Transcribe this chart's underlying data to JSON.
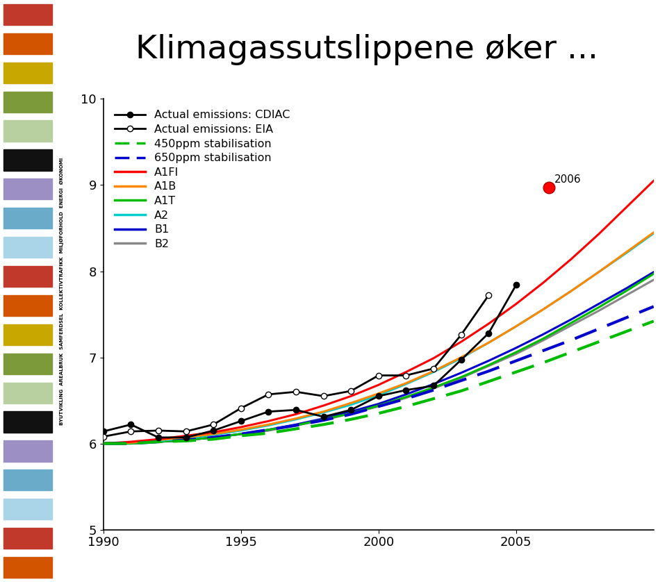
{
  "title": "Klimagassutslippene øker ...",
  "title_fontsize": 34,
  "xlim": [
    1990,
    2010
  ],
  "ylim": [
    5,
    10
  ],
  "yticks": [
    5,
    6,
    7,
    8,
    9,
    10
  ],
  "xticks": [
    1990,
    1995,
    2000,
    2005
  ],
  "bg_color": "#ffffff",
  "sidebar_colors": [
    "#c0392b",
    "#d35400",
    "#c8a800",
    "#7d9a3a",
    "#b8cfa0",
    "#000000",
    "#9b8fc4",
    "#6aabca",
    "#87ceeb",
    "#c0392b",
    "#d35400",
    "#c8a800",
    "#7d9a3a",
    "#b8cfa0",
    "#000000",
    "#9b8fc4",
    "#6aabca",
    "#87ceeb",
    "#c0392b",
    "#d35400"
  ],
  "cdiac_x": [
    1990,
    1991,
    1992,
    1993,
    1994,
    1995,
    1996,
    1997,
    1998,
    1999,
    2000,
    2001,
    2002,
    2003,
    2004,
    2005
  ],
  "cdiac_y": [
    6.14,
    6.22,
    6.07,
    6.07,
    6.15,
    6.26,
    6.37,
    6.39,
    6.31,
    6.39,
    6.55,
    6.62,
    6.67,
    6.97,
    7.28,
    7.84
  ],
  "eia_x": [
    1990,
    1991,
    1992,
    1993,
    1994,
    1995,
    1996,
    1997,
    1998,
    1999,
    2000,
    2001,
    2002,
    2003,
    2004
  ],
  "eia_y": [
    6.08,
    6.14,
    6.15,
    6.14,
    6.22,
    6.41,
    6.57,
    6.6,
    6.55,
    6.61,
    6.79,
    6.79,
    6.87,
    7.26,
    7.72
  ],
  "scenario_x": [
    1990,
    1991,
    1992,
    1993,
    1994,
    1995,
    1996,
    1997,
    1998,
    1999,
    2000,
    2001,
    2002,
    2003,
    2004,
    2005,
    2006,
    2007,
    2008,
    2009,
    2010
  ],
  "A1FI_y": [
    6.0,
    6.02,
    6.05,
    6.09,
    6.13,
    6.19,
    6.26,
    6.34,
    6.44,
    6.55,
    6.68,
    6.83,
    6.99,
    7.18,
    7.39,
    7.62,
    7.87,
    8.14,
    8.43,
    8.74,
    9.05
  ],
  "A1B_y": [
    6.0,
    6.01,
    6.04,
    6.07,
    6.11,
    6.16,
    6.22,
    6.29,
    6.37,
    6.47,
    6.58,
    6.7,
    6.84,
    7.0,
    7.17,
    7.36,
    7.56,
    7.77,
    7.99,
    8.22,
    8.45
  ],
  "A1T_y": [
    6.0,
    6.0,
    6.02,
    6.04,
    6.07,
    6.11,
    6.16,
    6.21,
    6.28,
    6.35,
    6.44,
    6.54,
    6.65,
    6.77,
    6.91,
    7.06,
    7.22,
    7.4,
    7.58,
    7.77,
    7.97
  ],
  "A2_y": [
    6.0,
    6.01,
    6.03,
    6.06,
    6.1,
    6.15,
    6.21,
    6.28,
    6.36,
    6.45,
    6.56,
    6.69,
    6.83,
    6.99,
    7.17,
    7.36,
    7.56,
    7.77,
    7.99,
    8.21,
    8.44
  ],
  "B1_y": [
    6.0,
    6.0,
    6.02,
    6.04,
    6.07,
    6.11,
    6.16,
    6.22,
    6.29,
    6.37,
    6.46,
    6.57,
    6.69,
    6.82,
    6.96,
    7.11,
    7.27,
    7.44,
    7.62,
    7.8,
    7.99
  ],
  "B2_y": [
    6.0,
    6.0,
    6.02,
    6.04,
    6.07,
    6.11,
    6.15,
    6.21,
    6.27,
    6.35,
    6.43,
    6.53,
    6.64,
    6.76,
    6.9,
    7.04,
    7.2,
    7.37,
    7.54,
    7.72,
    7.9
  ],
  "stab450_x": [
    1990,
    1991,
    1992,
    1993,
    1994,
    1995,
    1996,
    1997,
    1998,
    1999,
    2000,
    2001,
    2002,
    2003,
    2004,
    2005,
    2006,
    2007,
    2008,
    2009,
    2010
  ],
  "stab450_y": [
    6.0,
    6.0,
    6.02,
    6.03,
    6.05,
    6.09,
    6.12,
    6.17,
    6.22,
    6.28,
    6.35,
    6.43,
    6.52,
    6.61,
    6.72,
    6.83,
    6.94,
    7.06,
    7.18,
    7.3,
    7.42
  ],
  "stab650_x": [
    1990,
    1991,
    1992,
    1993,
    1994,
    1995,
    1996,
    1997,
    1998,
    1999,
    2000,
    2001,
    2002,
    2003,
    2004,
    2005,
    2006,
    2007,
    2008,
    2009,
    2010
  ],
  "stab650_y": [
    6.0,
    6.0,
    6.02,
    6.04,
    6.07,
    6.11,
    6.16,
    6.21,
    6.27,
    6.34,
    6.43,
    6.52,
    6.62,
    6.73,
    6.84,
    6.96,
    7.08,
    7.2,
    7.33,
    7.46,
    7.59
  ],
  "point2006_x": 2006.2,
  "point2006_y": 8.97,
  "A1FI_color": "#ff0000",
  "A1B_color": "#ff8800",
  "A1T_color": "#00bb00",
  "A2_color": "#00cccc",
  "B1_color": "#0000cc",
  "B2_color": "#888888",
  "stab450_color": "#00bb00",
  "stab650_color": "#0000cc"
}
